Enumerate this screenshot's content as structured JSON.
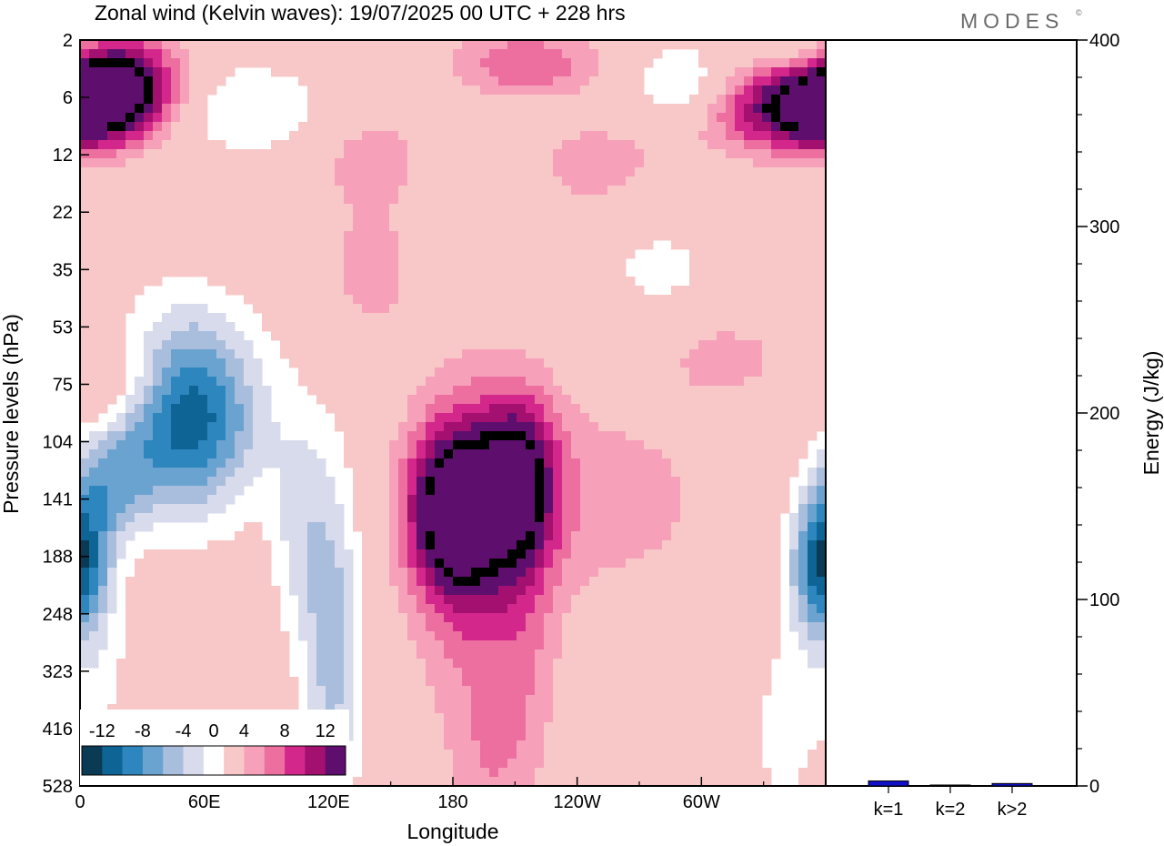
{
  "title": "Zonal wind (Kelvin waves):  19/07/2025  00 UTC  + 228 hrs",
  "logo": "MODES",
  "logo_mark": "©",
  "chart_data": [
    {
      "type": "heatmap",
      "title": "Zonal wind (Kelvin waves):  19/07/2025  00 UTC  + 228 hrs",
      "xlabel": "Longitude",
      "ylabel": "Pressure levels (hPa)",
      "x_ticks": [
        "0",
        "60E",
        "120E",
        "180",
        "120W",
        "60W"
      ],
      "x_tick_positions_deg": [
        0,
        60,
        120,
        180,
        240,
        300
      ],
      "xlim_deg": [
        0,
        360
      ],
      "y_ticks": [
        "2",
        "6",
        "12",
        "22",
        "35",
        "53",
        "75",
        "104",
        "141",
        "188",
        "248",
        "323",
        "416",
        "528"
      ],
      "colorbar": {
        "labels": [
          "-12",
          "-8",
          "-4",
          "0",
          "4",
          "8",
          "12"
        ],
        "levels": [
          -14,
          -12,
          -10,
          -8,
          -6,
          -4,
          -2,
          2,
          4,
          6,
          8,
          10,
          12,
          14
        ],
        "colors": [
          "#0b3a55",
          "#0f6496",
          "#2d86bd",
          "#6aa3cf",
          "#a9bedd",
          "#d8dbeb",
          "#ffffff",
          "#f8c8c8",
          "#f6a1b9",
          "#ec6fa0",
          "#d4278c",
          "#a3106f",
          "#5e0f6e"
        ]
      },
      "features": [
        {
          "lon": 52,
          "level": 6.5,
          "value": -14,
          "rx": 24,
          "ry": 1.2
        },
        {
          "lon": 0,
          "level": 9.0,
          "value": -7,
          "rx": 12,
          "ry": 0.9
        },
        {
          "lon": 358,
          "level": 9.2,
          "value": -7,
          "rx": 10,
          "ry": 0.9
        },
        {
          "lon": 15,
          "level": 7.7,
          "value": -6,
          "rx": 14,
          "ry": 0.7
        },
        {
          "lon": 122,
          "level": 10.5,
          "value": -7,
          "rx": 10,
          "ry": 2.2
        },
        {
          "lon": 105,
          "level": 8.5,
          "value": -4,
          "rx": 10,
          "ry": 1.5
        },
        {
          "lon": 180,
          "level": 8.2,
          "value": 14,
          "rx": 15,
          "ry": 1.0
        },
        {
          "lon": 212,
          "level": 7.7,
          "value": 12,
          "rx": 13,
          "ry": 1.0
        },
        {
          "lon": 190,
          "level": 8.8,
          "value": 6,
          "rx": 20,
          "ry": 2.0
        },
        {
          "lon": 250,
          "level": 8.0,
          "value": 3,
          "rx": 45,
          "ry": 1.3
        },
        {
          "lon": 215,
          "level": 10.5,
          "value": 2.5,
          "rx": 12,
          "ry": 1.5
        },
        {
          "lon": 20,
          "level": 6.0,
          "value": 4,
          "rx": 22,
          "ry": 0.6
        },
        {
          "lon": 20,
          "level": 0.8,
          "value": 13,
          "rx": 20,
          "ry": 0.6
        },
        {
          "lon": 355,
          "level": 1.0,
          "value": 13,
          "rx": 22,
          "ry": 0.6
        },
        {
          "lon": 330,
          "level": 1.3,
          "value": 5,
          "rx": 30,
          "ry": 0.5
        },
        {
          "lon": 350,
          "level": 0.3,
          "value": -6,
          "rx": 16,
          "ry": 0.4
        },
        {
          "lon": 215,
          "level": 0.4,
          "value": 6,
          "rx": 24,
          "ry": 0.4
        },
        {
          "lon": 290,
          "level": 0.8,
          "value": -5,
          "rx": 16,
          "ry": 0.5
        },
        {
          "lon": 280,
          "level": 4.0,
          "value": -2.5,
          "rx": 25,
          "ry": 0.8
        },
        {
          "lon": 140,
          "level": 4.0,
          "value": 2.8,
          "rx": 18,
          "ry": 0.9
        },
        {
          "lon": 310,
          "level": 5.5,
          "value": 3,
          "rx": 20,
          "ry": 0.5
        },
        {
          "lon": 340,
          "level": 12.0,
          "value": -2.5,
          "rx": 16,
          "ry": 1.5
        },
        {
          "lon": 200,
          "level": 12.5,
          "value": 3,
          "rx": 15,
          "ry": 1.0
        },
        {
          "lon": 10,
          "level": 11.0,
          "value": -2.2,
          "rx": 12,
          "ry": 1.0
        },
        {
          "lon": 140,
          "level": 2.0,
          "value": 3,
          "rx": 20,
          "ry": 0.6
        },
        {
          "lon": 250,
          "level": 2.2,
          "value": 3,
          "rx": 25,
          "ry": 0.6
        },
        {
          "lon": 80,
          "level": 1.2,
          "value": -4,
          "rx": 30,
          "ry": 0.6
        }
      ]
    },
    {
      "type": "bar",
      "categories": [
        "k=1",
        "k=2",
        "k>2"
      ],
      "values": [
        2.7,
        0.5,
        1.3
      ],
      "ylabel": "Energy (J/kg)",
      "ylim": [
        0,
        400
      ],
      "y_ticks": [
        "0",
        "100",
        "200",
        "300",
        "400"
      ],
      "bar_color": "#1010c8"
    }
  ]
}
